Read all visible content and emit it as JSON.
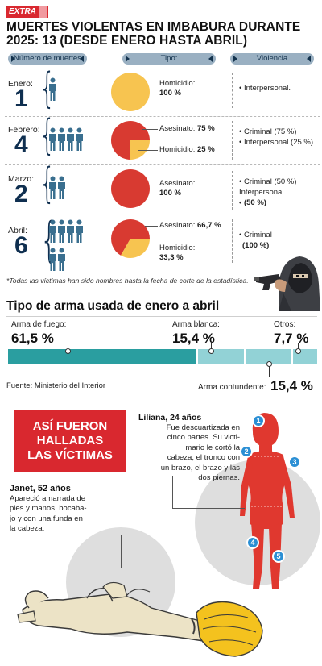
{
  "brand": "EXTRA",
  "title": "MUERTES VIOLENTAS EN IMBABURA DURANTE 2025: 13 (DESDE ENERO HASTA ABRIL)",
  "headers": {
    "count": "Número de muertes",
    "type": "Tipo:",
    "violence": "Violencia"
  },
  "rows": [
    {
      "month": "Enero:",
      "count": "1",
      "people": 1,
      "types": [
        {
          "name": "Homicidio:",
          "pct": "100 %"
        }
      ],
      "pie": [
        {
          "value": 100,
          "color": "#f7c450"
        }
      ],
      "violence": [
        "• Interpersonal."
      ]
    },
    {
      "month": "Febrero:",
      "count": "4",
      "people": 4,
      "types": [
        {
          "name": "Asesinato:",
          "pct": "75 %"
        },
        {
          "name": "Homicidio:",
          "pct": "25 %"
        }
      ],
      "pie": [
        {
          "value": 75,
          "color": "#d83a31"
        },
        {
          "value": 25,
          "color": "#f7c450"
        }
      ],
      "violence": [
        "• Criminal (75 %)",
        "• Interpersonal (25 %)"
      ]
    },
    {
      "month": "Marzo:",
      "count": "2",
      "people": 2,
      "types": [
        {
          "name": "Asesinato:",
          "pct": "100 %"
        }
      ],
      "pie": [
        {
          "value": 100,
          "color": "#d83a31"
        }
      ],
      "violence": [
        "• Criminal (50 %)",
        "Interpersonal",
        "• (50 %)"
      ]
    },
    {
      "month": "Abril:",
      "count": "6",
      "people": 6,
      "types": [
        {
          "name": "Asesinato:",
          "pct": "66,7 %"
        },
        {
          "name": "Homicidio:",
          "pct": "33,3 %"
        }
      ],
      "pie": [
        {
          "value": 66.7,
          "color": "#d83a31"
        },
        {
          "value": 33.3,
          "color": "#f7c450"
        }
      ],
      "violence": [
        "• Criminal",
        "(100 %)"
      ]
    }
  ],
  "note": "*Todas las víctimas han sido hombres hasta la fecha de corte de la estadística.",
  "weapons": {
    "title": "Tipo de arma usada de enero a abril",
    "items": [
      {
        "label": "Arma de fuego:",
        "value": "61,5 %",
        "share": 61.5,
        "color": "#2a9ea0"
      },
      {
        "label": "Arma blanca:",
        "value": "15,4 %",
        "share": 15.4,
        "color": "#92d2d6"
      },
      {
        "label": "Arma contundente:",
        "value": "15,4 %",
        "share": 15.4,
        "color": "#92d2d6"
      },
      {
        "label": "Otros:",
        "value": "7,7 %",
        "share": 7.7,
        "color": "#92d2d6"
      }
    ],
    "source": "Fuente:  Ministerio del Interior"
  },
  "found": {
    "heading_lines": [
      "ASÍ FUERON",
      "HALLADAS",
      "LAS VÍCTIMAS"
    ],
    "liliana": {
      "name": "Liliana, 24 años",
      "text_lines": [
        "Fue descuartizada en",
        "cinco partes. Su victi-",
        "mario le cortó la",
        "cabeza, el tronco con",
        "un brazo, el brazo y las",
        "dos piernas."
      ]
    },
    "janet": {
      "name": "Janet, 52 años",
      "text_lines": [
        "Apareció amarrada de",
        "pies y manos, bocaba-",
        "jo y con una funda en",
        "la cabeza."
      ]
    },
    "markers": [
      "1",
      "2",
      "3",
      "4",
      "5"
    ]
  }
}
